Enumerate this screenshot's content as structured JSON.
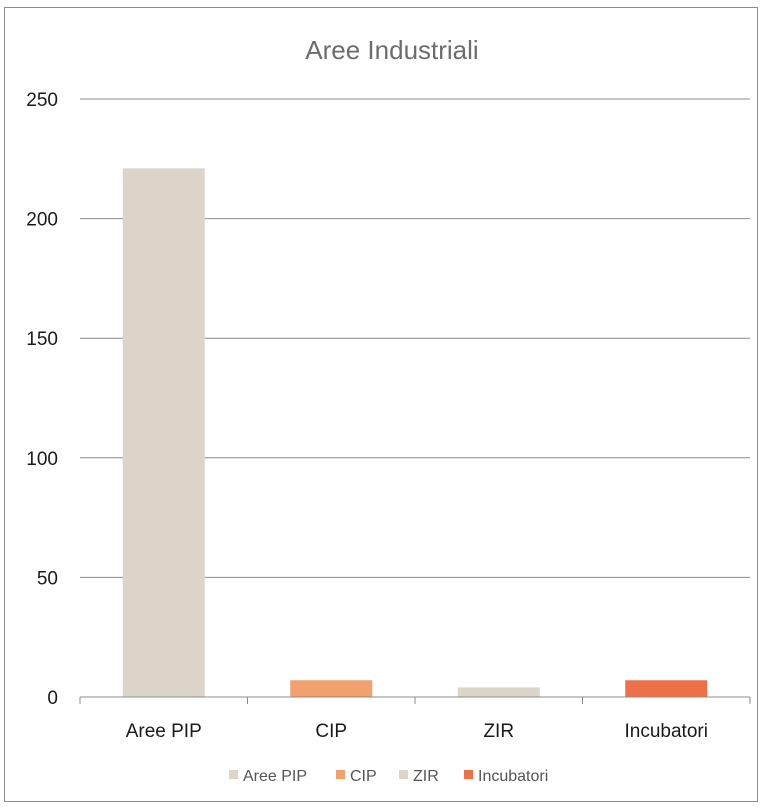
{
  "chart_data": {
    "type": "bar",
    "title": "Aree Industriali",
    "categories": [
      "Aree PIP",
      "CIP",
      "ZIR",
      "Incubatori"
    ],
    "values": [
      221,
      7,
      4,
      7
    ],
    "colors": [
      "#ddd5c9",
      "#f2a06e",
      "#ddd5c9",
      "#ee7049"
    ],
    "ylim": [
      0,
      250
    ],
    "yticks": [
      0,
      50,
      100,
      150,
      200,
      250
    ],
    "ytick_labels": [
      "0",
      "50",
      "100",
      "150",
      "200",
      "250"
    ],
    "grid": true,
    "legend": {
      "placement": "bottom",
      "entries": [
        {
          "label": "Aree PIP",
          "color": "#ddd5c9"
        },
        {
          "label": "CIP",
          "color": "#f2a06e"
        },
        {
          "label": "ZIR",
          "color": "#ddd5c9"
        },
        {
          "label": "Incubatori",
          "color": "#ee7049"
        }
      ]
    }
  }
}
